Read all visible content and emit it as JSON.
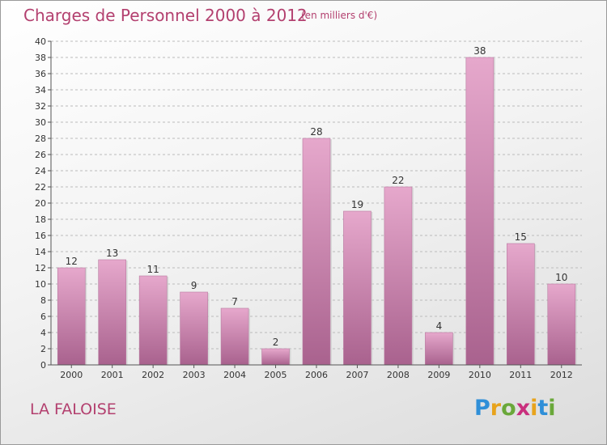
{
  "header": {
    "title": "Charges de Personnel 2000 à 2012",
    "subtitle": "(en milliers d'€)"
  },
  "footer": {
    "commune": "LA FALOISE",
    "logo_text": "Proxiti"
  },
  "colors": {
    "title": "#b3406f",
    "bar_top": "#e6a8cc",
    "bar_bottom": "#a9628e",
    "axis": "#555555",
    "grid": "#bbbbbb"
  },
  "chart_data": {
    "type": "bar",
    "title": "Charges de Personnel 2000 à 2012",
    "subtitle": "(en milliers d'€)",
    "categories": [
      "2000",
      "2001",
      "2002",
      "2003",
      "2004",
      "2005",
      "2006",
      "2007",
      "2008",
      "2009",
      "2010",
      "2011",
      "2012"
    ],
    "values": [
      12,
      13,
      11,
      9,
      7,
      2,
      28,
      19,
      22,
      4,
      38,
      15,
      10
    ],
    "ylim": [
      0,
      40
    ],
    "yticks": [
      0,
      2,
      4,
      6,
      8,
      10,
      12,
      14,
      16,
      18,
      20,
      22,
      24,
      26,
      28,
      30,
      32,
      34,
      36,
      38,
      40
    ],
    "grid": "horizontal dashed",
    "legend": "none",
    "xlabel": "",
    "ylabel": ""
  }
}
